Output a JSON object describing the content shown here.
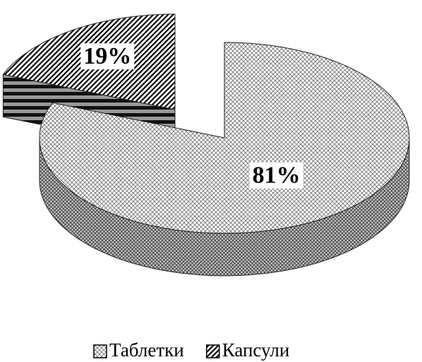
{
  "chart_data": {
    "type": "pie3d",
    "categories": [
      "Таблетки",
      "Капсули"
    ],
    "values": [
      81,
      19
    ],
    "value_labels": [
      "81%",
      "19%"
    ],
    "exploded": [
      false,
      true
    ],
    "legend": "bottom"
  }
}
